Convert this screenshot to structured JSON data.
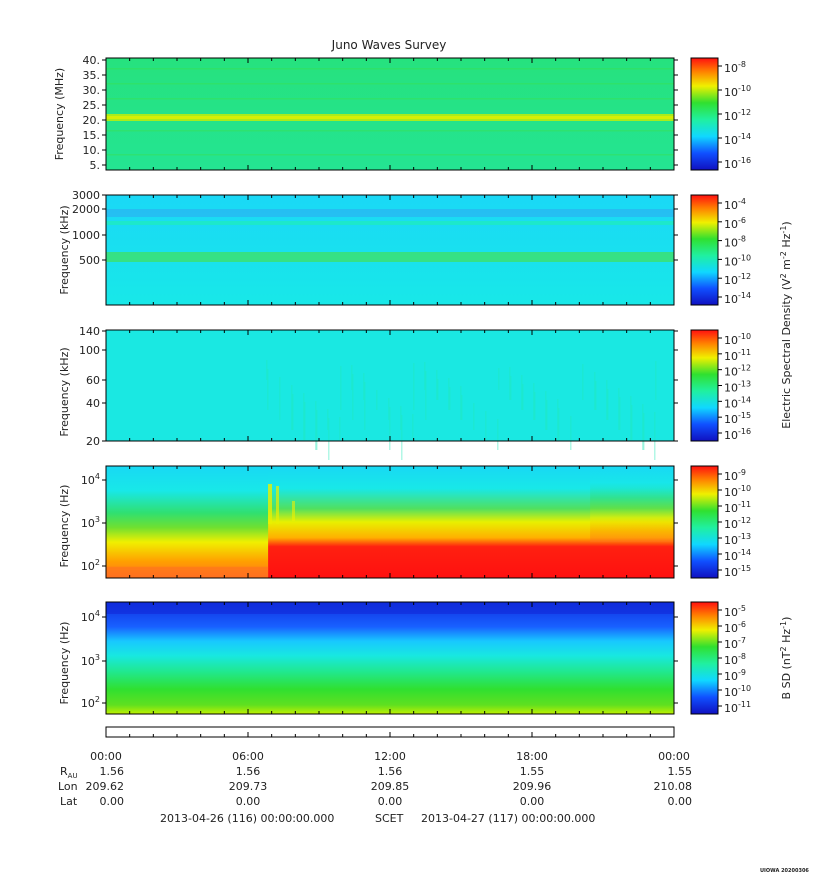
{
  "title": "Juno Waves Survey",
  "footer": {
    "start": "2013-04-26 (116) 00:00:00.000",
    "frame": "SCET",
    "end": "2013-04-27 (117) 00:00:00.000",
    "stamp": "UIOWA 20200306"
  },
  "ephemeris": {
    "labels": [
      "R",
      "Lon",
      "Lat"
    ],
    "r_subscript": "AU",
    "times": [
      "00:00",
      "06:00",
      "12:00",
      "18:00",
      "00:00"
    ],
    "R": [
      "1.56",
      "1.56",
      "1.56",
      "1.55",
      "1.55"
    ],
    "Lon": [
      "209.62",
      "209.73",
      "209.85",
      "209.96",
      "210.08"
    ],
    "Lat": [
      "0.00",
      "0.00",
      "0.00",
      "0.00",
      "0.00"
    ]
  },
  "colors": {
    "bg_cyan": "#19f0e0",
    "bg_green": "#28e890",
    "dark_blue": "#1020d0",
    "red": "#ff1010",
    "yellow": "#ffe000"
  },
  "chart_data": [
    {
      "type": "heatmap",
      "panel": 1,
      "ylabel": "Frequency (MHz)",
      "yticks": [
        "40.",
        "35.",
        "30.",
        "25.",
        "20.",
        "15.",
        "10.",
        "5."
      ],
      "ylim": [
        3.5,
        41
      ],
      "colorbar": {
        "ticks_exp": [
          "-8",
          "-10",
          "-12",
          "-14",
          "-16"
        ],
        "label": ""
      },
      "features": [
        {
          "band_MHz": 21,
          "level": "yellow-green"
        }
      ]
    },
    {
      "type": "heatmap",
      "panel": 2,
      "ylabel": "Frequency (kHz)",
      "yticks": [
        "3000",
        "2000",
        "1000",
        "500"
      ],
      "colorbar": {
        "ticks_exp": [
          "-4",
          "-6",
          "-8",
          "-10",
          "-12",
          "-14"
        ],
        "label": "Electric Spectral Density (V"
      }
    },
    {
      "type": "heatmap",
      "panel": 3,
      "ylabel": "Frequency (kHz)",
      "yticks": [
        "140",
        "100",
        "60",
        "40",
        "20"
      ],
      "colorbar": {
        "ticks_exp": [
          "-10",
          "-11",
          "-12",
          "-13",
          "-14",
          "-15",
          "-16"
        ],
        "label": ""
      }
    },
    {
      "type": "heatmap",
      "panel": 4,
      "ylabel": "Frequency (Hz)",
      "yticks_exp": [
        "4",
        "3",
        "2"
      ],
      "colorbar": {
        "ticks_exp": [
          "-9",
          "-10",
          "-11",
          "-12",
          "-13",
          "-14",
          "-15"
        ],
        "label": ""
      },
      "features": [
        {
          "event": "intensification after ~06:50",
          "level": "red below ~300 Hz"
        }
      ]
    },
    {
      "type": "heatmap",
      "panel": 5,
      "ylabel": "Frequency (Hz)",
      "yticks_exp": [
        "4",
        "3",
        "2"
      ],
      "colorbar": {
        "ticks_exp": [
          "-5",
          "-6",
          "-7",
          "-8",
          "-9",
          "-10",
          "-11"
        ],
        "label": "B SD (nT"
      }
    }
  ],
  "xaxis": {
    "ticks": [
      "00:00",
      "06:00",
      "12:00",
      "18:00",
      "00:00"
    ],
    "range_hours": [
      0,
      24
    ]
  }
}
